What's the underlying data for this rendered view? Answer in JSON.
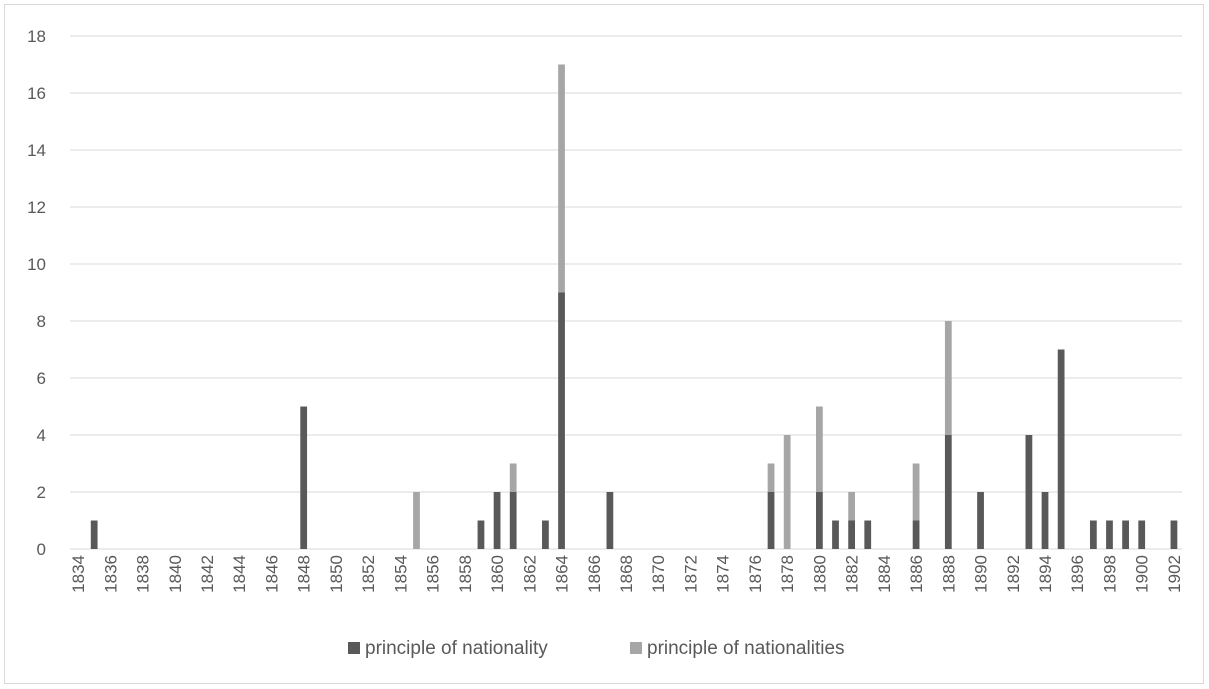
{
  "chart_data": {
    "type": "bar",
    "stacked": true,
    "x": [
      1835,
      1848,
      1855,
      1859,
      1860,
      1861,
      1863,
      1864,
      1867,
      1877,
      1878,
      1880,
      1881,
      1882,
      1883,
      1886,
      1888,
      1890,
      1893,
      1894,
      1895,
      1897,
      1898,
      1899,
      1900,
      1902
    ],
    "series": [
      {
        "name": "principle of nationality",
        "color": "#595959",
        "values": [
          1,
          5,
          0,
          1,
          2,
          2,
          1,
          9,
          2,
          2,
          0,
          2,
          1,
          1,
          1,
          1,
          4,
          2,
          4,
          2,
          7,
          1,
          1,
          1,
          1,
          1
        ]
      },
      {
        "name": "principle of nationalities",
        "color": "#a6a6a6",
        "values": [
          0,
          0,
          2,
          0,
          0,
          1,
          0,
          8,
          0,
          1,
          4,
          3,
          0,
          1,
          0,
          2,
          4,
          0,
          0,
          0,
          0,
          0,
          0,
          0,
          0,
          0
        ]
      }
    ],
    "x_tick_labels": [
      "1834",
      "1836",
      "1838",
      "1840",
      "1842",
      "1844",
      "1846",
      "1848",
      "1850",
      "1852",
      "1854",
      "1856",
      "1858",
      "1860",
      "1862",
      "1864",
      "1866",
      "1868",
      "1870",
      "1872",
      "1874",
      "1876",
      "1878",
      "1880",
      "1882",
      "1884",
      "1886",
      "1888",
      "1890",
      "1892",
      "1894",
      "1896",
      "1898",
      "1900",
      "1902"
    ],
    "y_tick_labels": [
      "0",
      "2",
      "4",
      "6",
      "8",
      "10",
      "12",
      "14",
      "16",
      "18"
    ],
    "xlim": [
      1834,
      1902
    ],
    "ylim": [
      0,
      18
    ],
    "grid": true,
    "legend_position": "bottom",
    "title": "",
    "xlabel": "",
    "ylabel": ""
  }
}
